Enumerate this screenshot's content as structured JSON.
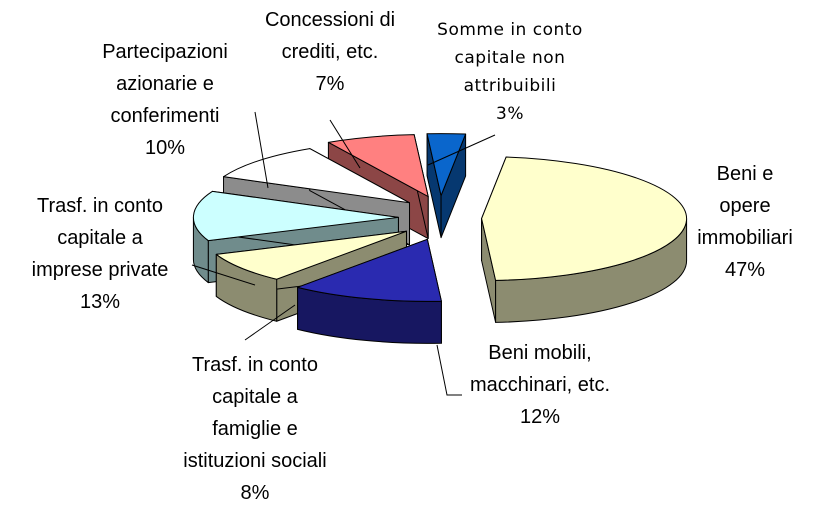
{
  "chart_data": {
    "type": "pie3d",
    "categories": [
      "Beni e opere\nimmobiliari",
      "Beni mobili,\nmacchinari, etc.",
      "Trasf. in conto\ncapitale a\nfamiglie e\nistituzioni sociali",
      "Trasf. in conto\ncapitale a\nimprese private",
      "Partecipazioni\nazionarie e\nconferimenti",
      "Concessioni di\ncrediti, etc.",
      "Somme in conto\ncapitale non\nattribuibili"
    ],
    "values": [
      47,
      12,
      8,
      13,
      10,
      7,
      3
    ],
    "value_labels": [
      "47%",
      "12%",
      "8%",
      "13%",
      "10%",
      "7%",
      "3%"
    ],
    "colors": [
      "#ffffcc",
      "#2a2ab0",
      "#ffffcc",
      "#ccffff",
      "#ffffff",
      "#ff8080",
      "#0a66cc"
    ]
  }
}
